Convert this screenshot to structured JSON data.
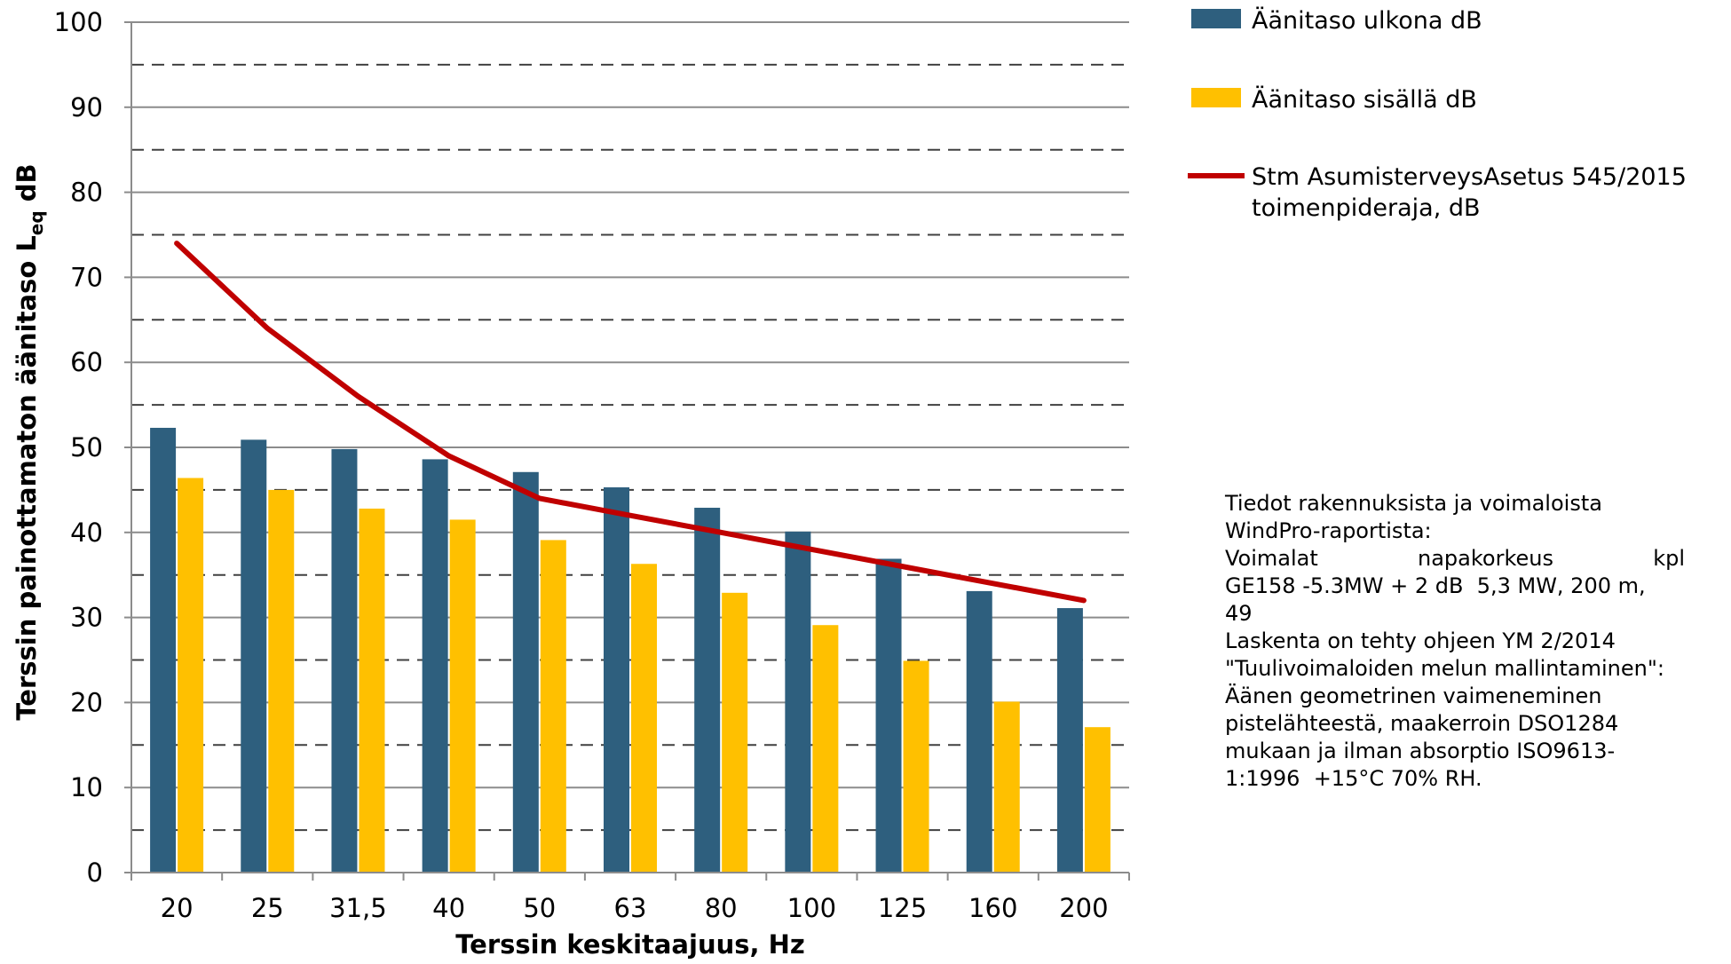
{
  "chart_data": {
    "type": "bar",
    "xlabel": "Terssin keskitaajuus, Hz",
    "ylabel_main": "Terssin painottamaton äänitaso L",
    "ylabel_sub": "eq",
    "ylabel_unit": " dB",
    "ylim": [
      0,
      100
    ],
    "yticks": [
      "0",
      "10",
      "20",
      "30",
      "40",
      "50",
      "60",
      "70",
      "80",
      "90",
      "100"
    ],
    "grid": "major solid, minor dashed (every 5)",
    "legend_position": "right",
    "categories": [
      "20",
      "25",
      "31,5",
      "40",
      "50",
      "63",
      "80",
      "100",
      "125",
      "160",
      "200"
    ],
    "series": [
      {
        "name": "Äänitaso ulkona dB",
        "kind": "bar",
        "color": "#2e5f7e",
        "values": [
          52.3,
          50.9,
          49.8,
          48.6,
          47.1,
          45.3,
          42.9,
          40.1,
          36.9,
          33.1,
          31.1
        ]
      },
      {
        "name": "Äänitaso sisällä dB",
        "kind": "bar",
        "color": "#ffc000",
        "values": [
          46.4,
          45.0,
          42.8,
          41.5,
          39.1,
          36.3,
          32.9,
          29.1,
          24.9,
          20.1,
          17.1
        ]
      },
      {
        "name": "Stm AsumisterveysAsetus 545/2015",
        "name_line2": "toimenpideraja, dB",
        "kind": "line",
        "color": "#c00000",
        "values": [
          74,
          64,
          56,
          49,
          44,
          42,
          40,
          38,
          36,
          34,
          32
        ]
      }
    ]
  },
  "note": {
    "lines": [
      "Tiedot rakennuksista ja voimaloista",
      "WindPro-raportista:",
      "Voimalat napakorkeus kpl",
      "GE158 -5.3MW + 2 dB  5,3 MW, 200 m,",
      "49",
      "Laskenta on tehty ohjeen YM 2/2014",
      "\"Tuulivoimaloiden melun mallintaminen\":",
      "Äänen geometrinen vaimeneminen",
      "pistelähteestä, maakerroin DSO1284",
      "mukaan ja ilman absorptio ISO9613-",
      "1:1996  +15°C 70% RH."
    ]
  }
}
